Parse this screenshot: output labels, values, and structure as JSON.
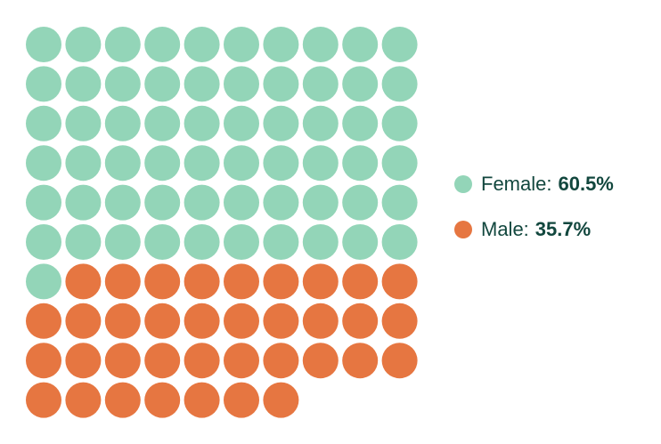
{
  "chart_data": {
    "type": "waffle",
    "grid": {
      "columns": 10,
      "rows": 10
    },
    "series": [
      {
        "name": "Female",
        "value_label": "60.5%",
        "value": 60.5,
        "units": 61,
        "color": "#93d5b8"
      },
      {
        "name": "Male",
        "value_label": "35.7%",
        "value": 35.7,
        "units": 36,
        "color": "#e67641"
      }
    ],
    "legend_position": "right",
    "text_color": "#12473e"
  },
  "legend": {
    "female_label": "Female:",
    "female_value": "60.5%",
    "male_label": "Male:",
    "male_value": "35.7%"
  }
}
